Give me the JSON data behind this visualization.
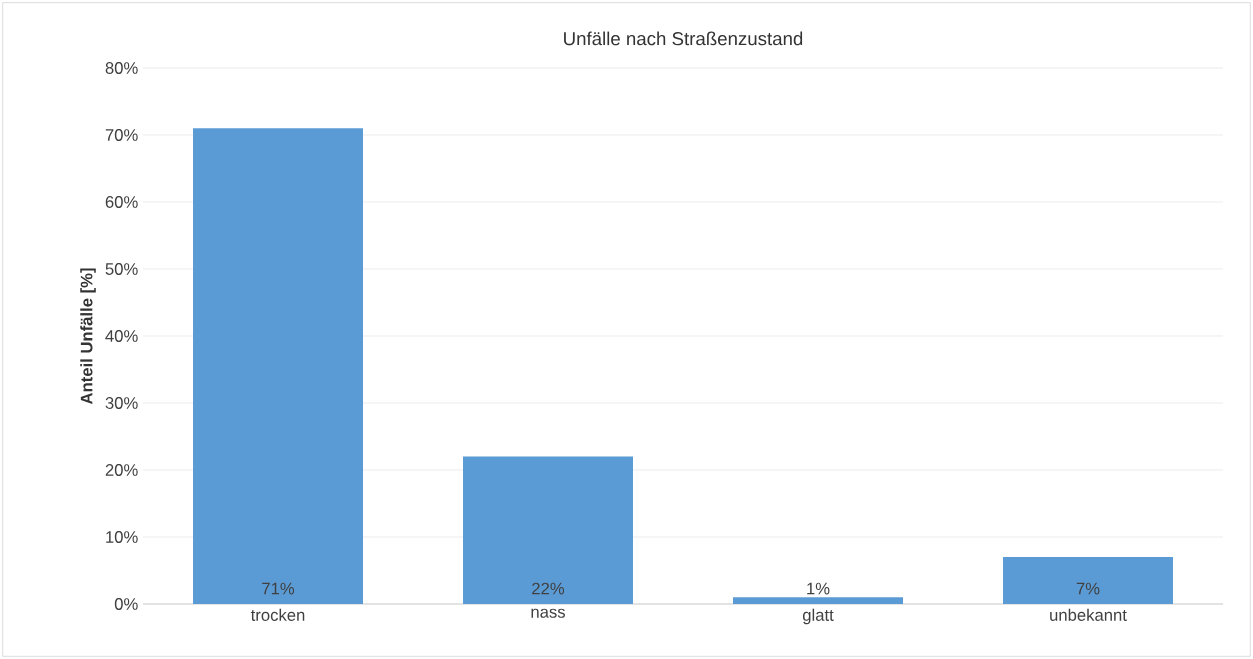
{
  "chart_data": {
    "type": "bar",
    "title": "Unfälle nach Straßenzustand",
    "ylabel": "Anteil Unfälle [%]",
    "categories": [
      "trocken",
      "nass",
      "glatt",
      "unbekannt"
    ],
    "values": [
      71,
      22,
      1,
      7
    ],
    "value_labels": [
      "71%",
      "22%",
      "1%",
      "7%"
    ],
    "color": "#5b9bd5",
    "ylim": [
      0,
      80
    ],
    "yticks": [
      {
        "value": 0,
        "label": "0%"
      },
      {
        "value": 10,
        "label": "10%"
      },
      {
        "value": 20,
        "label": "20%"
      },
      {
        "value": 30,
        "label": "30%"
      },
      {
        "value": 40,
        "label": "40%"
      },
      {
        "value": 50,
        "label": "50%"
      },
      {
        "value": 60,
        "label": "60%"
      },
      {
        "value": 70,
        "label": "70%"
      },
      {
        "value": 80,
        "label": "80%"
      }
    ],
    "grid": "y"
  }
}
